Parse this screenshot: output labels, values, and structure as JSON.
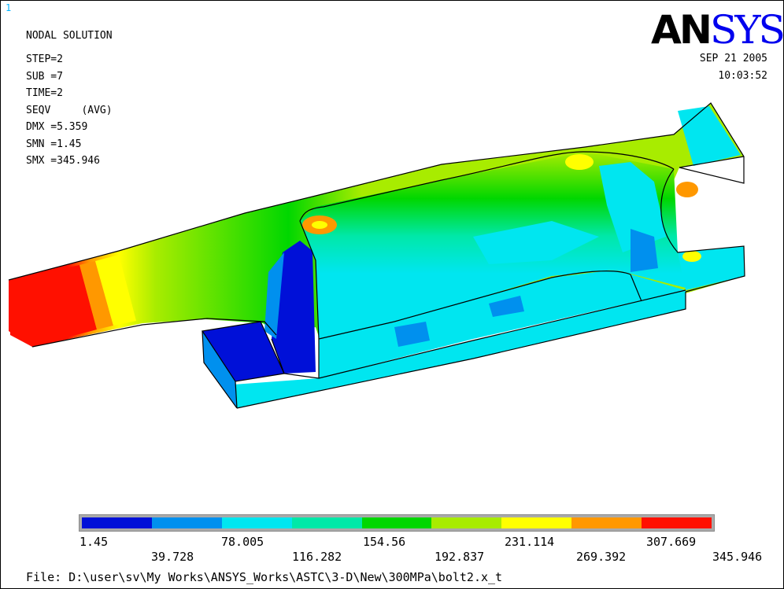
{
  "window_number": "1",
  "title": "NODAL SOLUTION",
  "info_lines": [
    "STEP=2",
    "SUB =7",
    "TIME=2",
    "SEQV     (AVG)",
    "DMX =5.359",
    "SMN =1.45",
    "SMX =345.946"
  ],
  "date": "SEP 21 2005",
  "time": "10:03:52",
  "logo": {
    "part1": "AN",
    "part2": "SYS",
    "color1": "#000000",
    "color2": "#0000ee"
  },
  "legend": {
    "colors": [
      "#0010d8",
      "#0090ee",
      "#00e6f0",
      "#00e8a8",
      "#00d700",
      "#a8ec00",
      "#ffff00",
      "#ff9800",
      "#ff1000"
    ],
    "top_labels": [
      "1.45",
      "78.005",
      "154.56",
      "231.114",
      "307.669"
    ],
    "bottom_labels": [
      "39.728",
      "116.282",
      "192.837",
      "269.392",
      "345.946"
    ]
  },
  "file_path": "File: D:\\user\\sv\\My Works\\ANSYS_Works\\ASTC\\3-D\\New\\300MPa\\bolt2.x_t"
}
